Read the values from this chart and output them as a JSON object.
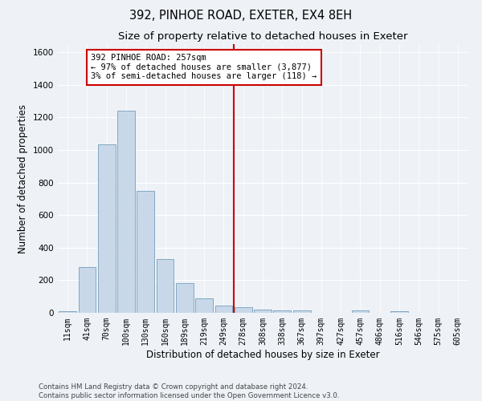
{
  "title": "392, PINHOE ROAD, EXETER, EX4 8EH",
  "subtitle": "Size of property relative to detached houses in Exeter",
  "xlabel": "Distribution of detached houses by size in Exeter",
  "ylabel": "Number of detached properties",
  "bar_color": "#c8d8e8",
  "bar_edge_color": "#6090b0",
  "bin_labels": [
    "11sqm",
    "41sqm",
    "70sqm",
    "100sqm",
    "130sqm",
    "160sqm",
    "189sqm",
    "219sqm",
    "249sqm",
    "278sqm",
    "308sqm",
    "338sqm",
    "367sqm",
    "397sqm",
    "427sqm",
    "457sqm",
    "486sqm",
    "516sqm",
    "546sqm",
    "575sqm",
    "605sqm"
  ],
  "bar_heights": [
    10,
    280,
    1035,
    1240,
    750,
    330,
    180,
    90,
    45,
    35,
    20,
    15,
    15,
    0,
    0,
    15,
    0,
    10,
    0,
    0,
    0
  ],
  "ylim": [
    0,
    1650
  ],
  "yticks": [
    0,
    200,
    400,
    600,
    800,
    1000,
    1200,
    1400,
    1600
  ],
  "property_line_x": 8.5,
  "annotation_text": "392 PINHOE ROAD: 257sqm\n← 97% of detached houses are smaller (3,877)\n3% of semi-detached houses are larger (118) →",
  "annotation_box_color": "#ffffff",
  "annotation_box_edge_color": "#cc0000",
  "vline_color": "#cc0000",
  "bg_color": "#eef2f7",
  "footer_text": "Contains HM Land Registry data © Crown copyright and database right 2024.\nContains public sector information licensed under the Open Government Licence v3.0.",
  "grid_color": "#ffffff",
  "title_fontsize": 10.5,
  "subtitle_fontsize": 9.5,
  "tick_fontsize": 7,
  "ylabel_fontsize": 8.5,
  "xlabel_fontsize": 8.5,
  "footer_fontsize": 6.2
}
